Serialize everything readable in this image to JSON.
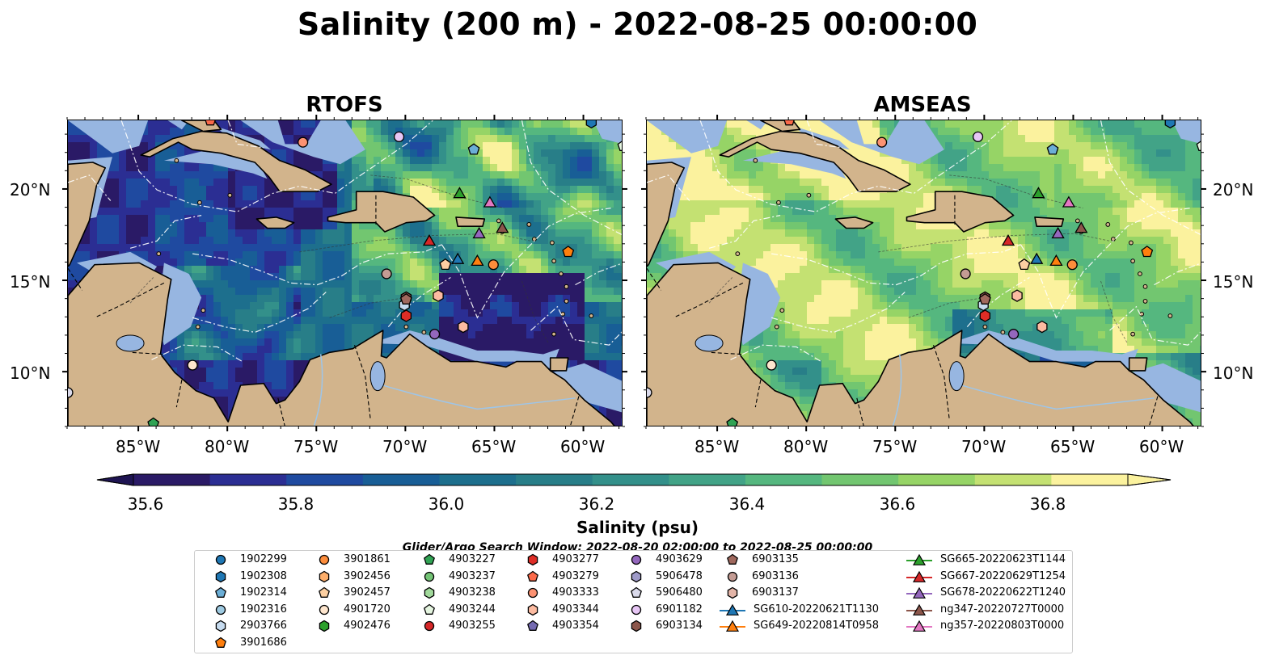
{
  "title": "Salinity (200 m) - 2022-08-25 00:00:00",
  "panels": [
    {
      "title": "RTOFS",
      "model": "rtofs"
    },
    {
      "title": "AMSEAS",
      "model": "amseas"
    }
  ],
  "axes": {
    "lat_labels": [
      "20°N",
      "15°N",
      "10°N"
    ],
    "lon_labels": [
      "85°W",
      "80°W",
      "75°W",
      "70°W",
      "65°W",
      "60°W"
    ],
    "lon_range": [
      -89,
      -57.8
    ],
    "lat_range": [
      7,
      23.8
    ]
  },
  "colorbar": {
    "ticks": [
      "35.6",
      "35.8",
      "36.0",
      "36.2",
      "36.4",
      "36.6",
      "36.8"
    ],
    "label": "Salinity (psu)",
    "range": [
      35.5,
      36.9
    ],
    "colors": [
      "#2a1a66",
      "#2b2e93",
      "#1f4aa0",
      "#185e96",
      "#1d6f8d",
      "#287e88",
      "#33908a",
      "#42a387",
      "#55b77f",
      "#72c670",
      "#96d466",
      "#c4e172",
      "#fbf29e"
    ]
  },
  "search_window": "Glider/Argo Search Window: 2022-08-20 02:00:00 to 2022-08-25 00:00:00",
  "legend": {
    "columns": [
      [
        {
          "label": "1902299",
          "marker": "circle",
          "color": "#1f77b4"
        },
        {
          "label": "1902308",
          "marker": "hexagon",
          "color": "#1f77b4"
        },
        {
          "label": "1902314",
          "marker": "pentagon",
          "color": "#6baed6"
        },
        {
          "label": "1902316",
          "marker": "circle",
          "color": "#9ecae1"
        },
        {
          "label": "2903766",
          "marker": "hexagon",
          "color": "#c6dbef"
        },
        {
          "label": "3901686",
          "marker": "pentagon",
          "color": "#ff7f0e"
        }
      ],
      [
        {
          "label": "3901861",
          "marker": "circle",
          "color": "#fd8d3c"
        },
        {
          "label": "3902456",
          "marker": "hexagon",
          "color": "#fdae6b"
        },
        {
          "label": "3902457",
          "marker": "pentagon",
          "color": "#fdd0a2"
        },
        {
          "label": "4901720",
          "marker": "circle",
          "color": "#fee6ce"
        },
        {
          "label": "4902476",
          "marker": "hexagon",
          "color": "#2ca02c"
        }
      ],
      [
        {
          "label": "4903227",
          "marker": "pentagon",
          "color": "#31a354"
        },
        {
          "label": "4903237",
          "marker": "circle",
          "color": "#74c476"
        },
        {
          "label": "4903238",
          "marker": "hexagon",
          "color": "#a1d99b"
        },
        {
          "label": "4903244",
          "marker": "pentagon",
          "color": "#e5f5e0"
        },
        {
          "label": "4903255",
          "marker": "circle",
          "color": "#d62728"
        }
      ],
      [
        {
          "label": "4903277",
          "marker": "hexagon",
          "color": "#de2d26"
        },
        {
          "label": "4903279",
          "marker": "pentagon",
          "color": "#fb6a4a"
        },
        {
          "label": "4903333",
          "marker": "circle",
          "color": "#fc9272"
        },
        {
          "label": "4903344",
          "marker": "hexagon",
          "color": "#fcbba1"
        },
        {
          "label": "4903354",
          "marker": "pentagon",
          "color": "#756bb1"
        }
      ],
      [
        {
          "label": "4903629",
          "marker": "circle",
          "color": "#9467bd"
        },
        {
          "label": "5906478",
          "marker": "hexagon",
          "color": "#9e9ac8"
        },
        {
          "label": "5906480",
          "marker": "pentagon",
          "color": "#dadaeb"
        },
        {
          "label": "6901182",
          "marker": "circle",
          "color": "#e7c6f5"
        },
        {
          "label": "6903134",
          "marker": "hexagon",
          "color": "#8c564b"
        }
      ],
      [
        {
          "label": "6903135",
          "marker": "pentagon",
          "color": "#a0695e"
        },
        {
          "label": "6903136",
          "marker": "circle",
          "color": "#c49c94"
        },
        {
          "label": "6903137",
          "marker": "hexagon",
          "color": "#e3b5a8"
        },
        {
          "label": "SG610-20220621T1130",
          "marker": "triangle-line",
          "color": "#1f77b4"
        },
        {
          "label": "SG649-20220814T0958",
          "marker": "triangle-line",
          "color": "#ff7f0e"
        }
      ],
      [
        {
          "label": "SG665-20220623T1144",
          "marker": "triangle-line",
          "color": "#2ca02c"
        },
        {
          "label": "SG667-20220629T1254",
          "marker": "triangle-line",
          "color": "#d62728"
        },
        {
          "label": "SG678-20220622T1240",
          "marker": "triangle-line",
          "color": "#9467bd"
        },
        {
          "label": "ng347-20220727T0000",
          "marker": "triangle-line",
          "color": "#8c564b"
        },
        {
          "label": "ng357-20220803T0000",
          "marker": "triangle-line",
          "color": "#e377c2"
        }
      ]
    ]
  },
  "colors": {
    "land": "#d2b48c",
    "shelf": "#97b6e1",
    "coast": "#000000"
  }
}
